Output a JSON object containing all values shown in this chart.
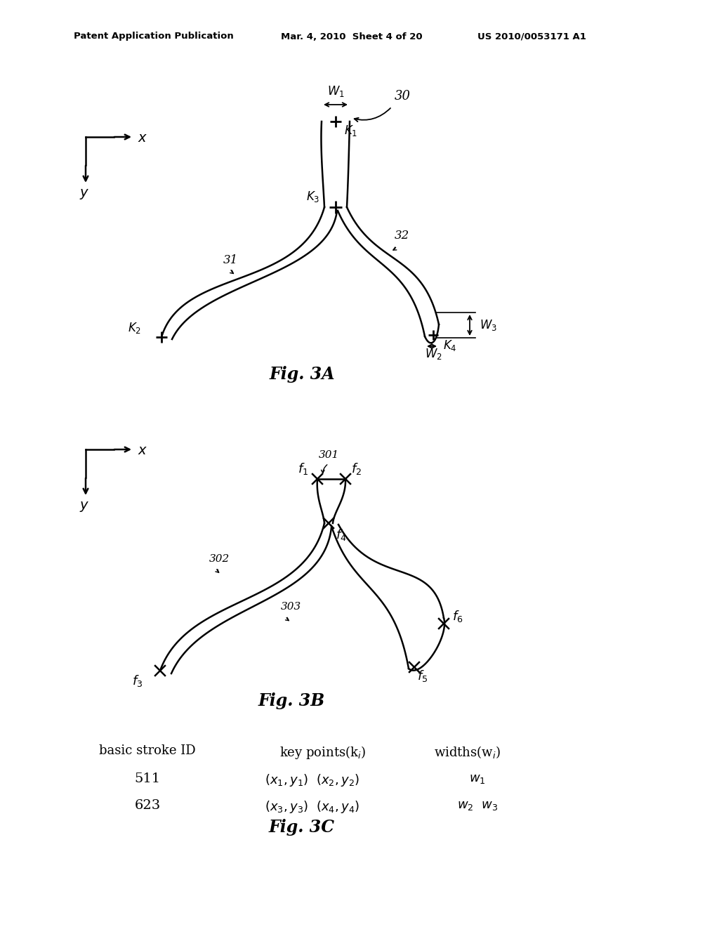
{
  "bg_color": "#ffffff",
  "header_left": "Patent Application Publication",
  "header_mid": "Mar. 4, 2010  Sheet 4 of 20",
  "header_right": "US 2010/0053171 A1",
  "fig3A_title": "Fig. 3A",
  "fig3B_title": "Fig. 3B",
  "fig3C_title": "Fig. 3C",
  "table_col1_hdr": "basic stroke ID",
  "table_col2_hdr": "key points(k",
  "table_col3_hdr": "widths(w",
  "table_row1_id": "511",
  "table_row2_id": "623"
}
